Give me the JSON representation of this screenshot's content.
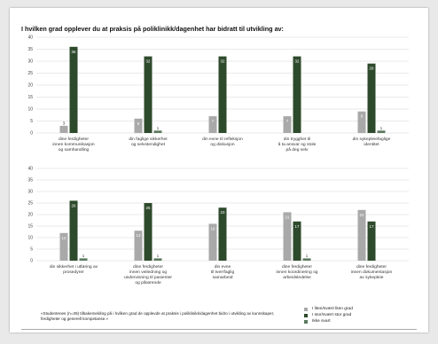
{
  "title": "I hvilken grad opplever du at praksis på poliklinikk/dagenhet har bidratt til utvikling av:",
  "caption": "«Studentenes (n=39) tilbakemelding på i hvilken grad de opplevde at praksis i poliklinikk/dagenhet bidro i utvikling av kunnskaper, ferdigheter og generell kompetanse.»",
  "colors": {
    "low": "#a9a9a9",
    "high": "#2e4a2c",
    "none": "#5b7a5f",
    "grid": "#d4d4d4",
    "axis_text": "#444444",
    "label_text": "#333333"
  },
  "legend": [
    {
      "name": "I liten/svært liten grad",
      "color": "#a9a9a9"
    },
    {
      "name": "I stor/svært stor grad",
      "color": "#2e4a2c"
    },
    {
      "name": "Ikke svart",
      "color": "#5b7a5f"
    }
  ],
  "chart_data": [
    {
      "type": "bar",
      "title": "",
      "ylim": [
        0,
        40
      ],
      "yticks": [
        0,
        5,
        10,
        15,
        20,
        25,
        30,
        35,
        40
      ],
      "categories": [
        [
          "dine ferdigheter",
          "innen kommunikasjon",
          "og samhandling"
        ],
        [
          "din faglige sikkerhet",
          "og selvstendighet"
        ],
        [
          "din evne til refleksjon",
          "og diskusjon"
        ],
        [
          "din trygghet til",
          "å ta ansvar og stole",
          "på deg selv"
        ],
        [
          "din sykepleiefaglige",
          "identitet"
        ]
      ],
      "series": [
        {
          "name": "I liten/svært liten grad",
          "values": [
            3,
            6,
            7,
            7,
            9
          ]
        },
        {
          "name": "I stor/svært stor grad",
          "values": [
            36,
            32,
            32,
            32,
            29
          ]
        },
        {
          "name": "Ikke svart",
          "values": [
            0,
            1,
            0,
            0,
            1
          ]
        }
      ]
    },
    {
      "type": "bar",
      "title": "",
      "ylim": [
        0,
        40
      ],
      "yticks": [
        0,
        5,
        10,
        15,
        20,
        25,
        30,
        35,
        40
      ],
      "categories": [
        [
          "din sikkerhet i utføring av",
          "prosedyrer"
        ],
        [
          "dine ferdigheter",
          "innen veiledning og",
          "undervisning til pasienter",
          "og pårørende"
        ],
        [
          "din evne",
          "til tverrfaglig",
          "samarbeid"
        ],
        [
          "dine ferdigheter",
          "innen koordinering og",
          "arbeidsledelse"
        ],
        [
          "dine ferdigheter",
          "innen dokumentasjon",
          "av sykepleie"
        ]
      ],
      "series": [
        {
          "name": "I liten/svært liten grad",
          "values": [
            12,
            13,
            16,
            21,
            22
          ]
        },
        {
          "name": "I stor/svært stor grad",
          "values": [
            26,
            25,
            23,
            17,
            17
          ]
        },
        {
          "name": "Ikke svart",
          "values": [
            1,
            1,
            0,
            1,
            0
          ]
        }
      ]
    }
  ]
}
